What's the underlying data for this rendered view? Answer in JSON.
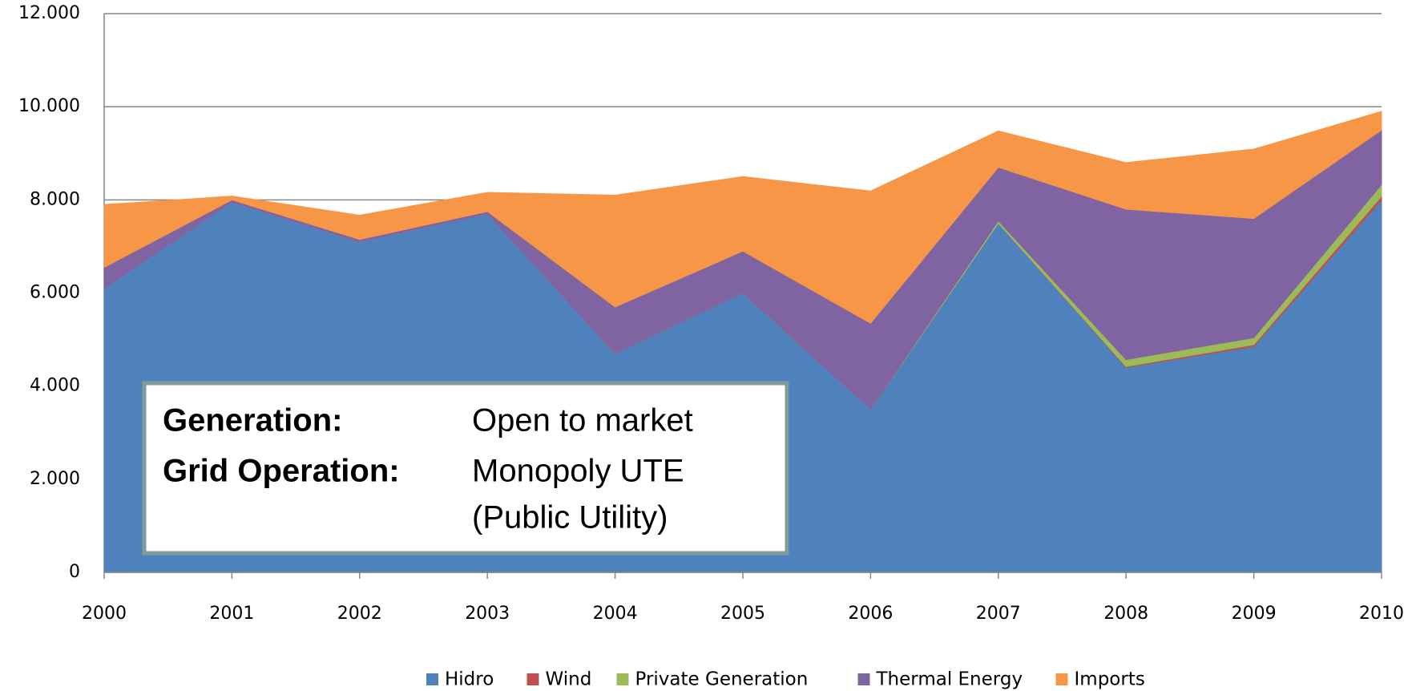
{
  "chart_data": {
    "type": "area",
    "stacked": true,
    "x": [
      2000,
      2001,
      2002,
      2003,
      2004,
      2005,
      2006,
      2007,
      2008,
      2009,
      2010
    ],
    "xlim": [
      2000,
      2010
    ],
    "xticks": [
      2000,
      2001,
      2002,
      2003,
      2004,
      2005,
      2006,
      2007,
      2008,
      2009,
      2010
    ],
    "ylim": [
      0,
      12000
    ],
    "yticks": [
      0,
      {
        "value": 2000,
        "label": "2.000"
      },
      {
        "value": 4000,
        "label": "4.000"
      },
      {
        "value": 6000,
        "label": "6.000"
      },
      {
        "value": 8000,
        "label": "8.000"
      },
      {
        "value": 10000,
        "label": "10.000"
      },
      {
        "value": 12000,
        "label": "12.000"
      }
    ],
    "grid": true,
    "legend": "bottom",
    "series": [
      {
        "name": "Hidro",
        "color": "#4f81bd",
        "values": [
          6100,
          7950,
          7100,
          7700,
          4700,
          6000,
          3500,
          7500,
          4400,
          4850,
          8000
        ]
      },
      {
        "name": "Wind",
        "color": "#c0504d",
        "values": [
          0,
          0,
          0,
          0,
          0,
          0,
          0,
          0,
          20,
          40,
          80
        ]
      },
      {
        "name": "Private Generation",
        "color": "#9bbb59",
        "values": [
          0,
          0,
          0,
          0,
          0,
          0,
          0,
          50,
          150,
          150,
          250
        ]
      },
      {
        "name": "Thermal Energy",
        "color": "#8064a2",
        "values": [
          450,
          50,
          50,
          50,
          1000,
          900,
          1850,
          1150,
          3230,
          2560,
          1170
        ]
      },
      {
        "name": "Imports",
        "color": "#f79646",
        "values": [
          1350,
          80,
          520,
          410,
          2400,
          1600,
          2840,
          780,
          1000,
          1490,
          400
        ]
      }
    ],
    "annotation": {
      "labels": [
        "Generation:",
        "Grid Operation:"
      ],
      "lines": [
        "Open to market",
        "Monopoly UTE",
        "(Public Utility)"
      ]
    }
  }
}
